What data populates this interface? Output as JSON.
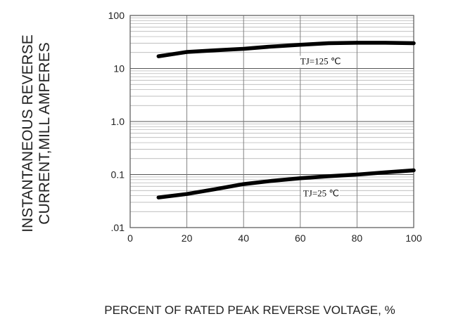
{
  "chart_data": {
    "type": "line",
    "ylabel_line1": "INSTANTANEOUS REVERSE",
    "ylabel_line2": "CURRENT,MILL AMPERES",
    "xlabel": "PERCENT  OF  RATED PEAK REVERSE VOLTAGE, %",
    "x_ticks": [
      "0",
      "20",
      "40",
      "60",
      "80",
      "100"
    ],
    "y_ticks": [
      "100",
      "10",
      "1.0",
      "0.1",
      ".01"
    ],
    "xlim": [
      0,
      100
    ],
    "ylim": [
      0.01,
      100
    ],
    "yscale": "log",
    "grid": true,
    "series": [
      {
        "name": "TJ=125 ℃",
        "x": [
          10,
          20,
          30,
          40,
          50,
          60,
          70,
          80,
          90,
          100
        ],
        "y": [
          17,
          20.5,
          22,
          23.5,
          26,
          28,
          30,
          30.5,
          30.5,
          30
        ]
      },
      {
        "name": "TJ=25 ℃",
        "x": [
          10,
          20,
          30,
          40,
          50,
          60,
          70,
          80,
          90,
          100
        ],
        "y": [
          0.037,
          0.043,
          0.053,
          0.066,
          0.076,
          0.085,
          0.093,
          0.1,
          0.11,
          0.12
        ]
      }
    ],
    "annotations": [
      {
        "text": "TJ=125 ℃",
        "x": 60,
        "y": 12
      },
      {
        "text": "TJ=25 ℃",
        "x": 61,
        "y": 0.039
      }
    ]
  }
}
